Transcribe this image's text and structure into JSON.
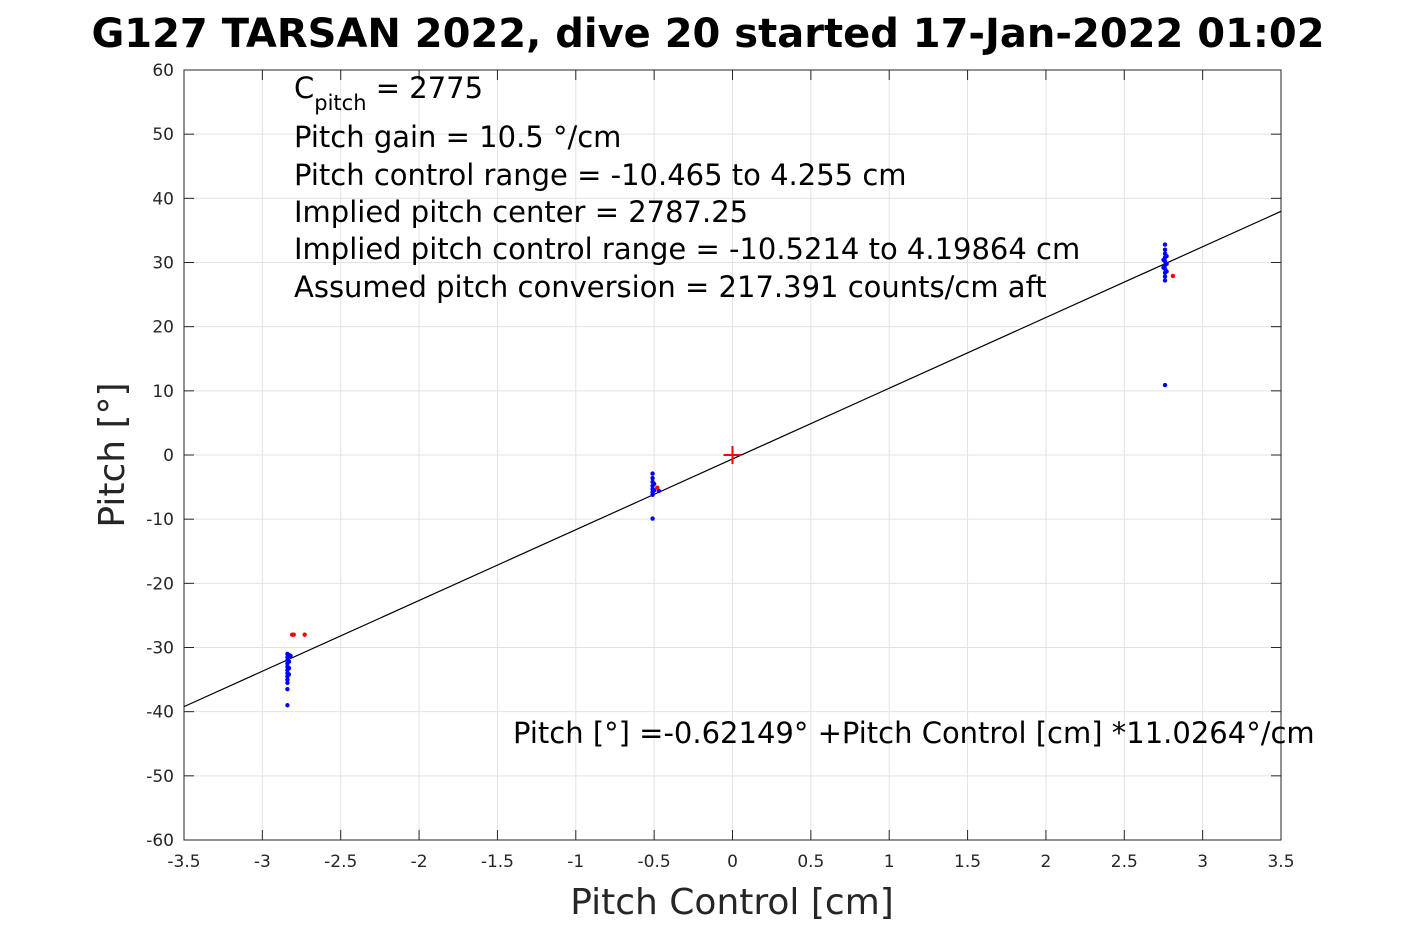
{
  "chart_data": {
    "type": "scatter",
    "title": "G127 TARSAN 2022, dive 20 started 17-Jan-2022 01:02",
    "xlabel": "Pitch Control [cm]",
    "ylabel": "Pitch [°]",
    "xlim": [
      -3.5,
      3.5
    ],
    "ylim": [
      -60,
      60
    ],
    "xticks": [
      -3.5,
      -3,
      -2.5,
      -2,
      -1.5,
      -1,
      -0.5,
      0,
      0.5,
      1,
      1.5,
      2,
      2.5,
      3,
      3.5
    ],
    "xtick_labels": [
      "-3.5",
      "-3",
      "-2.5",
      "-2",
      "-1.5",
      "-1",
      "-0.5",
      "0",
      "0.5",
      "1",
      "1.5",
      "2",
      "2.5",
      "3",
      "3.5"
    ],
    "yticks": [
      60,
      50,
      40,
      30,
      20,
      10,
      0,
      -10,
      -20,
      -30,
      -40,
      -50,
      -60
    ],
    "ytick_labels": [
      "60",
      "50",
      "40",
      "30",
      "20",
      "10",
      "0",
      "-10",
      "-20",
      "-30",
      "-40",
      "-50",
      "-60"
    ],
    "grid": true,
    "series": [
      {
        "color": "#0000ff",
        "marker": "dot",
        "points": [
          [
            -2.84,
            -31.0
          ],
          [
            -2.84,
            -31.5
          ],
          [
            -2.84,
            -32.0
          ],
          [
            -2.84,
            -32.5
          ],
          [
            -2.84,
            -33.0
          ],
          [
            -2.84,
            -33.5
          ],
          [
            -2.84,
            -34.0
          ],
          [
            -2.84,
            -34.5
          ],
          [
            -2.84,
            -35.0
          ],
          [
            -2.84,
            -35.5
          ],
          [
            -2.83,
            -31.2
          ],
          [
            -2.83,
            -32.2
          ],
          [
            -2.83,
            -33.2
          ],
          [
            -2.83,
            -34.2
          ],
          [
            -2.82,
            -31.3
          ],
          [
            -2.84,
            -36.5
          ],
          [
            -2.84,
            -39.0
          ],
          [
            -0.51,
            -2.9
          ],
          [
            -0.51,
            -3.6
          ],
          [
            -0.51,
            -4.2
          ],
          [
            -0.51,
            -4.8
          ],
          [
            -0.51,
            -5.3
          ],
          [
            -0.51,
            -5.8
          ],
          [
            -0.51,
            -6.2
          ],
          [
            -0.5,
            -4.5
          ],
          [
            -0.5,
            -5.5
          ],
          [
            -0.47,
            -5.6
          ],
          [
            -0.51,
            -9.9
          ],
          [
            2.76,
            27.2
          ],
          [
            2.76,
            27.8
          ],
          [
            2.76,
            28.4
          ],
          [
            2.76,
            29.0
          ],
          [
            2.76,
            29.6
          ],
          [
            2.76,
            30.2
          ],
          [
            2.76,
            30.8
          ],
          [
            2.76,
            31.4
          ],
          [
            2.76,
            32.0
          ],
          [
            2.76,
            32.8
          ],
          [
            2.77,
            28.6
          ],
          [
            2.77,
            29.8
          ],
          [
            2.77,
            31.0
          ],
          [
            2.75,
            29.2
          ],
          [
            2.75,
            30.4
          ],
          [
            2.76,
            10.9
          ]
        ]
      },
      {
        "color": "#ff0000",
        "marker": "dot",
        "points": [
          [
            -2.81,
            -28.0
          ],
          [
            -2.8,
            -28.0
          ],
          [
            -2.73,
            -28.0
          ],
          [
            -0.48,
            -5.1
          ],
          [
            2.81,
            27.9
          ]
        ]
      }
    ],
    "center_marker": {
      "x": 0,
      "y": 0,
      "color": "#ff0000"
    },
    "fit_line": {
      "intercept": -0.62149,
      "slope": 11.0264,
      "color": "#000000"
    },
    "annotations": {
      "c_pitch_base": "C",
      "c_pitch_sub": "pitch",
      "c_pitch_rest": " = 2775",
      "lines": [
        "Pitch gain = 10.5 °/cm",
        "Pitch control range = -10.465 to 4.255 cm",
        "Implied pitch center = 2787.25",
        "Implied pitch control range = -10.5214 to 4.19864 cm",
        "Assumed pitch conversion = 217.391 counts/cm aft"
      ],
      "fit_equation": "Pitch [°] =-0.62149° +Pitch Control [cm] *11.0264°/cm"
    }
  }
}
